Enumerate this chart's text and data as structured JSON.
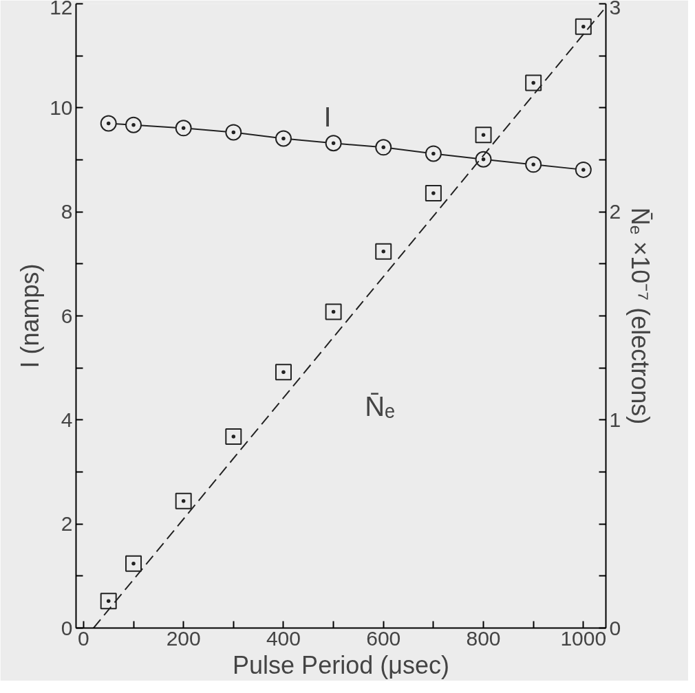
{
  "chart_data": {
    "type": "line",
    "xlabel": "Pulse Period (μsec)",
    "ylabel": "I (namps)",
    "y2label": "N̄ₑ ×10⁻⁷ (electrons)",
    "xlim": [
      -15,
      1045
    ],
    "ylim": [
      0,
      12
    ],
    "y2lim": [
      0,
      3
    ],
    "xticks": [
      0,
      {
        "value": 100,
        "label": null
      },
      200,
      {
        "value": 300,
        "label": null
      },
      400,
      {
        "value": 500,
        "label": null
      },
      600,
      {
        "value": 700,
        "label": null
      },
      800,
      {
        "value": 900,
        "label": null
      },
      1000
    ],
    "yticks": [
      0,
      {
        "value": 1,
        "label": null
      },
      2,
      {
        "value": 3,
        "label": null
      },
      4,
      {
        "value": 5,
        "label": null
      },
      6,
      {
        "value": 7,
        "label": null
      },
      8,
      {
        "value": 9,
        "label": null
      },
      10,
      {
        "value": 11,
        "label": null
      },
      12
    ],
    "y2ticks": [
      0,
      {
        "value": 0.25,
        "label": null
      },
      {
        "value": 0.5,
        "label": null
      },
      {
        "value": 0.75,
        "label": null
      },
      1,
      {
        "value": 1.25,
        "label": null
      },
      {
        "value": 1.5,
        "label": null
      },
      {
        "value": 1.75,
        "label": null
      },
      2,
      {
        "value": 2.25,
        "label": null
      },
      {
        "value": 2.5,
        "label": null
      },
      {
        "value": 2.75,
        "label": null
      },
      3
    ],
    "grid": false,
    "series": [
      {
        "color": "#222222",
        "marker": "circle",
        "line_style": "solid",
        "x": [
          50,
          100,
          200,
          300,
          400,
          500,
          600,
          700,
          800,
          900,
          1000
        ],
        "values": [
          9.7,
          9.67,
          9.61,
          9.53,
          9.41,
          9.32,
          9.24,
          9.12,
          9.01,
          8.91,
          8.81
        ]
      },
      {
        "type": "scatter",
        "color": "#222222",
        "marker": "square",
        "axis": "y2",
        "x": [
          50,
          100,
          200,
          300,
          400,
          500,
          600,
          700,
          800,
          900,
          1000
        ],
        "values": [
          0.13,
          0.31,
          0.61,
          0.92,
          1.23,
          1.52,
          1.81,
          2.09,
          2.37,
          2.62,
          2.89
        ]
      },
      {
        "type": "line",
        "color": "#222222",
        "marker": "none",
        "line_style": "dashed",
        "axis": "y2",
        "x": [
          20,
          1040
        ],
        "values": [
          0,
          2.97
        ]
      }
    ],
    "annotations": [
      "I",
      "N̄ₑ"
    ]
  }
}
